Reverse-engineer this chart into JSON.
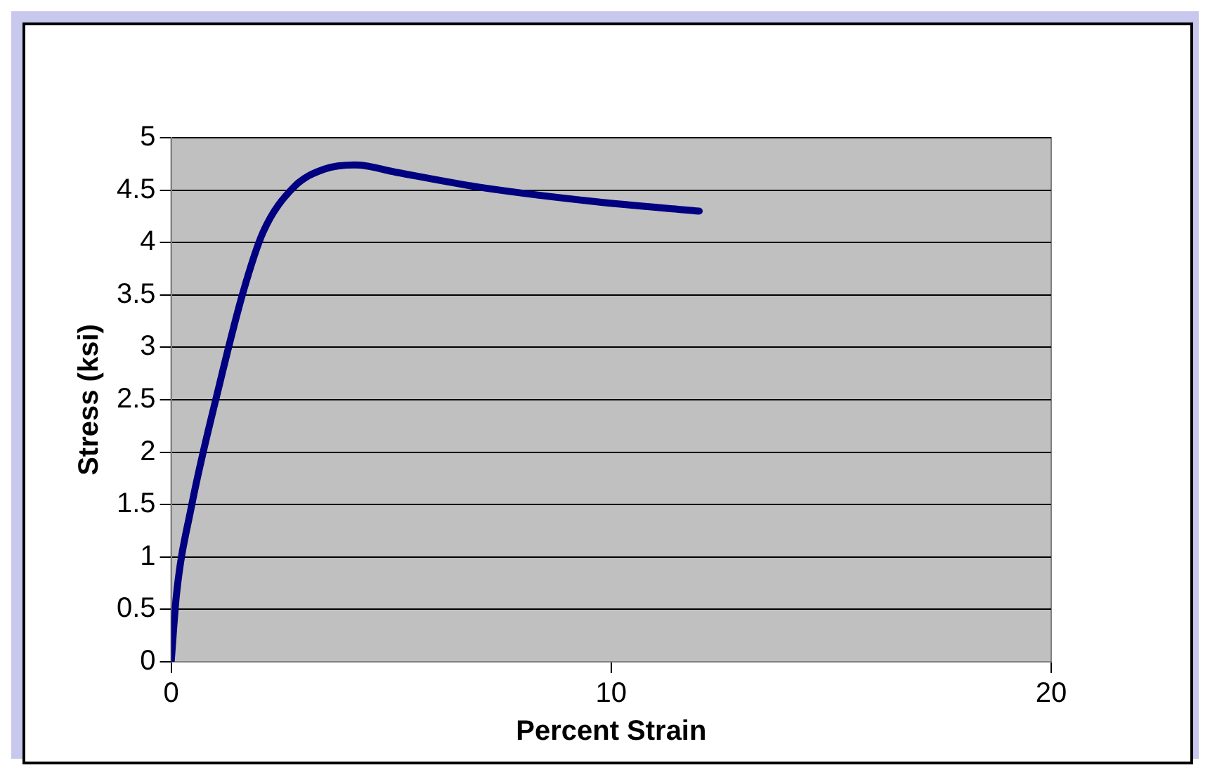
{
  "chart_data": {
    "type": "line",
    "xlabel": "Percent Strain",
    "ylabel": "Stress (ksi)",
    "x": [
      0,
      0.12,
      0.45,
      1.1,
      1.63,
      2.09,
      2.79,
      3.48,
      4.18,
      5.11,
      6.97,
      9.64,
      12.0
    ],
    "series": [
      {
        "color": "#000080",
        "values": [
          0,
          0.64,
          1.46,
          2.65,
          3.52,
          4.1,
          4.53,
          4.7,
          4.74,
          4.67,
          4.53,
          4.39,
          4.3
        ]
      }
    ],
    "xlim": [
      0,
      20
    ],
    "xticks": [
      0,
      10,
      20
    ],
    "ylim": [
      0,
      5
    ],
    "yticks": [
      0,
      0.5,
      1,
      1.5,
      2,
      2.5,
      3,
      3.5,
      4,
      4.5,
      5
    ],
    "grid": "y",
    "legend": false,
    "marker": "none",
    "line_style": "solid"
  }
}
